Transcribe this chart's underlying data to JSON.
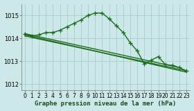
{
  "title": "Graphe pression niveau de la mer (hPa)",
  "background_color": "#cce8e8",
  "grid_color": "#aacccc",
  "line_color": "#1a6b1a",
  "xlim": [
    -0.5,
    23.5
  ],
  "ylim": [
    1011.75,
    1015.5
  ],
  "yticks": [
    1012,
    1013,
    1014,
    1015
  ],
  "xticks": [
    0,
    1,
    2,
    3,
    4,
    5,
    6,
    7,
    8,
    9,
    10,
    11,
    12,
    13,
    14,
    15,
    16,
    17,
    18,
    19,
    20,
    21,
    22,
    23
  ],
  "series1_x": [
    0,
    1,
    2,
    3,
    4,
    5,
    6,
    7,
    8,
    9,
    10,
    11,
    12,
    13,
    14,
    15,
    16,
    17,
    18,
    19,
    20,
    21,
    22,
    23
  ],
  "series1_y": [
    1014.2,
    1014.1,
    1014.15,
    1014.25,
    1014.25,
    1014.35,
    1014.5,
    1014.65,
    1014.8,
    1015.0,
    1015.1,
    1015.1,
    1014.85,
    1014.55,
    1014.25,
    1013.8,
    1013.45,
    1012.88,
    1013.05,
    1013.2,
    1012.85,
    1012.82,
    1012.72,
    1012.58
  ],
  "series2_x": [
    0,
    22
  ],
  "series2_y": [
    1014.2,
    1012.72
  ],
  "series3_x": [
    0,
    23
  ],
  "series3_y": [
    1014.1,
    1012.58
  ],
  "series4_x": [
    0,
    23
  ],
  "series4_y": [
    1014.15,
    1012.52
  ],
  "marker": "+",
  "markersize": 4,
  "linewidth": 1.0,
  "tick_fontsize": 5.5,
  "title_fontsize": 6.5
}
